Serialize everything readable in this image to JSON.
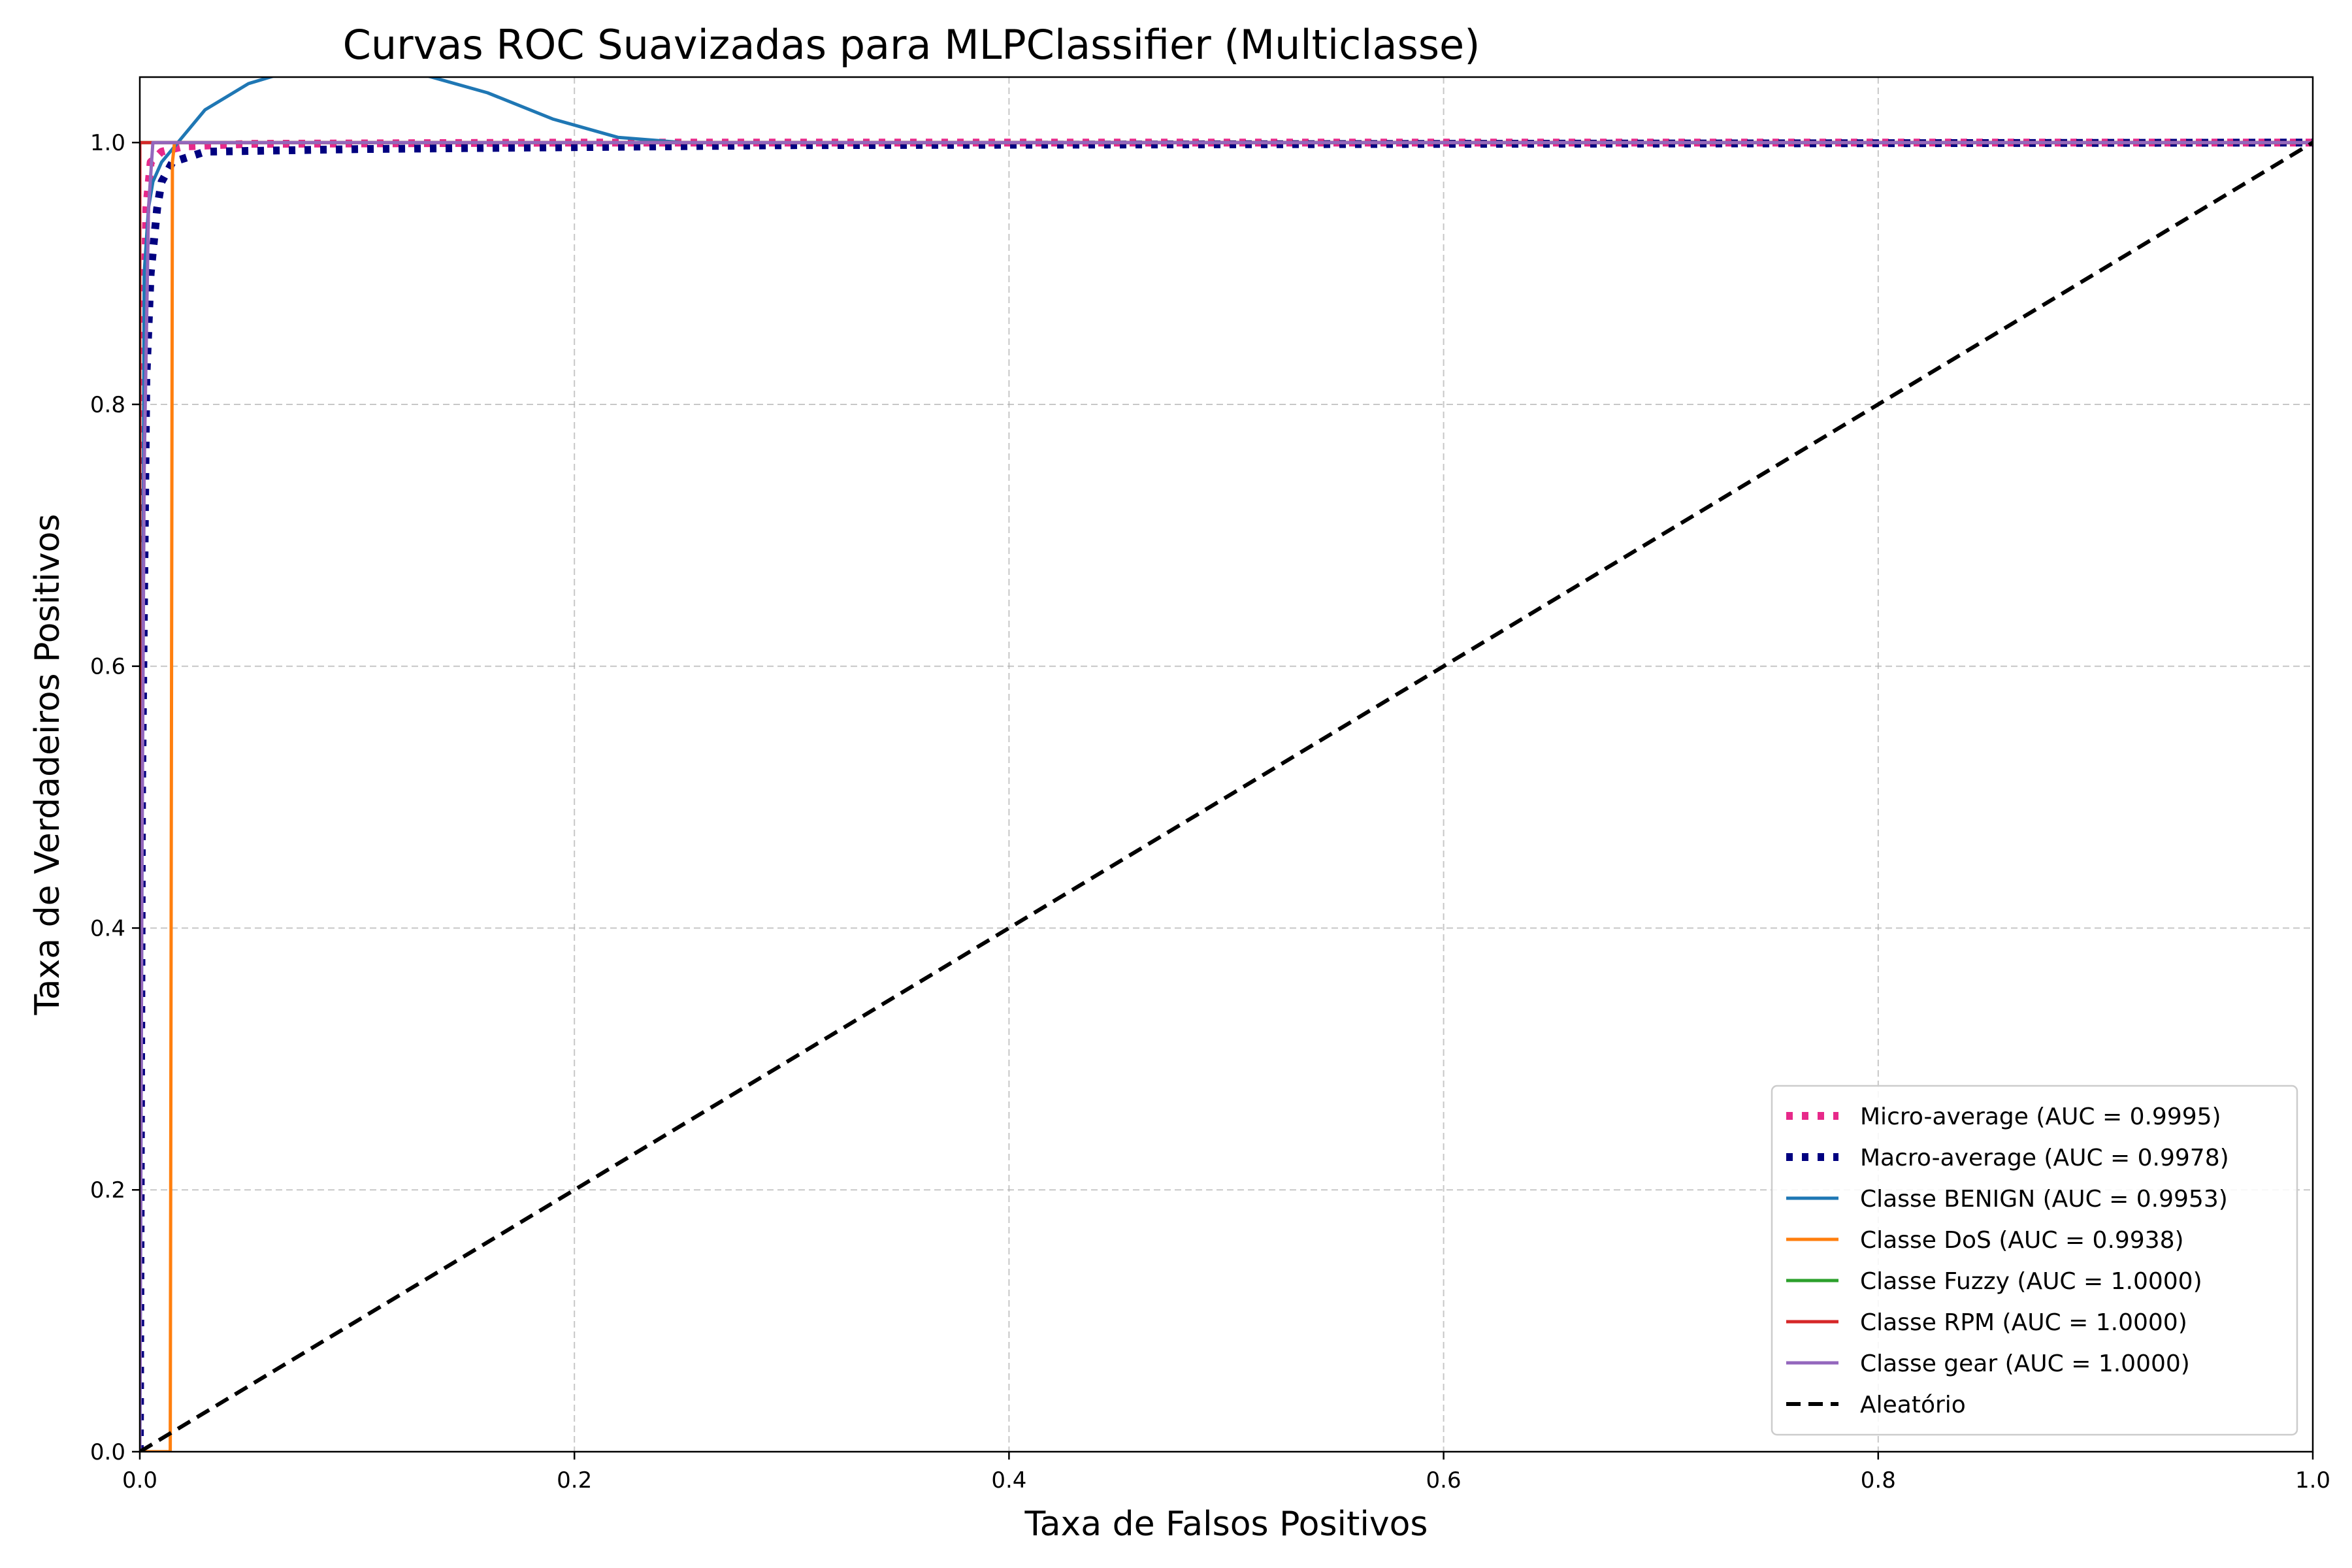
{
  "chart_data": {
    "type": "line",
    "title": "Curvas ROC Suavizadas para MLPClassifier (Multiclasse)",
    "xlabel": "Taxa de Falsos Positivos",
    "ylabel": "Taxa de Verdadeiros Positivos",
    "xlim": [
      0.0,
      1.0
    ],
    "ylim": [
      0.0,
      1.05
    ],
    "xticks": [
      "0.0",
      "0.2",
      "0.4",
      "0.6",
      "0.8",
      "1.0"
    ],
    "yticks": [
      "0.0",
      "0.2",
      "0.4",
      "0.6",
      "0.8",
      "1.0"
    ],
    "grid": true,
    "legend_position": "lower-right",
    "series": [
      {
        "name": "Micro-average (AUC = 0.9995)",
        "color": "#e7298a",
        "style": "dotted",
        "x": [
          0.0,
          0.001,
          0.002,
          0.003,
          0.005,
          0.01,
          0.02,
          0.05,
          0.2,
          0.5,
          1.0
        ],
        "y": [
          0.0,
          0.5,
          0.85,
          0.95,
          0.985,
          0.993,
          0.997,
          0.999,
          1.0,
          1.0,
          1.0
        ]
      },
      {
        "name": "Macro-average (AUC = 0.9978)",
        "color": "#000080",
        "style": "dotted",
        "x": [
          0.0,
          0.001,
          0.003,
          0.005,
          0.008,
          0.01,
          0.015,
          0.03,
          0.1,
          0.3,
          0.6,
          1.0
        ],
        "y": [
          0.0,
          0.5,
          0.82,
          0.9,
          0.95,
          0.97,
          0.985,
          0.993,
          0.995,
          0.998,
          0.999,
          1.0
        ]
      },
      {
        "name": "Classe BENIGN (AUC = 0.9953)",
        "color": "#1f77b4",
        "style": "solid",
        "x": [
          0.0,
          0.002,
          0.004,
          0.006,
          0.01,
          0.02,
          0.03,
          0.05,
          0.07,
          0.1,
          0.13,
          0.16,
          0.19,
          0.22,
          0.25,
          0.3,
          0.5,
          1.0
        ],
        "y": [
          0.0,
          0.9,
          0.95,
          0.97,
          0.985,
          1.005,
          1.025,
          1.045,
          1.055,
          1.058,
          1.052,
          1.038,
          1.018,
          1.004,
          1.0,
          1.0,
          1.0,
          1.0
        ]
      },
      {
        "name": "Classe DoS (AUC = 0.9938)",
        "color": "#ff7f0e",
        "style": "solid",
        "x": [
          0.0,
          0.014,
          0.015,
          0.016,
          0.02,
          1.0
        ],
        "y": [
          0.0,
          0.0,
          0.985,
          1.0,
          1.0,
          1.0
        ]
      },
      {
        "name": "Classe Fuzzy (AUC = 1.0000)",
        "color": "#2ca02c",
        "style": "solid",
        "x": [
          0.0,
          0.0,
          1.0
        ],
        "y": [
          0.0,
          1.0,
          1.0
        ]
      },
      {
        "name": "Classe RPM (AUC = 1.0000)",
        "color": "#d62728",
        "style": "solid",
        "x": [
          0.0,
          0.0,
          1.0
        ],
        "y": [
          0.0,
          1.0,
          1.0
        ]
      },
      {
        "name": "Classe gear (AUC = 1.0000)",
        "color": "#9467bd",
        "style": "solid",
        "x": [
          0.0,
          0.001,
          0.002,
          0.004,
          0.006,
          0.1,
          1.0
        ],
        "y": [
          0.0,
          0.45,
          0.75,
          0.95,
          1.0,
          1.0,
          1.0
        ]
      },
      {
        "name": "Aleatório",
        "color": "#000000",
        "style": "dashed",
        "x": [
          0.0,
          1.0
        ],
        "y": [
          0.0,
          1.0
        ]
      }
    ]
  }
}
